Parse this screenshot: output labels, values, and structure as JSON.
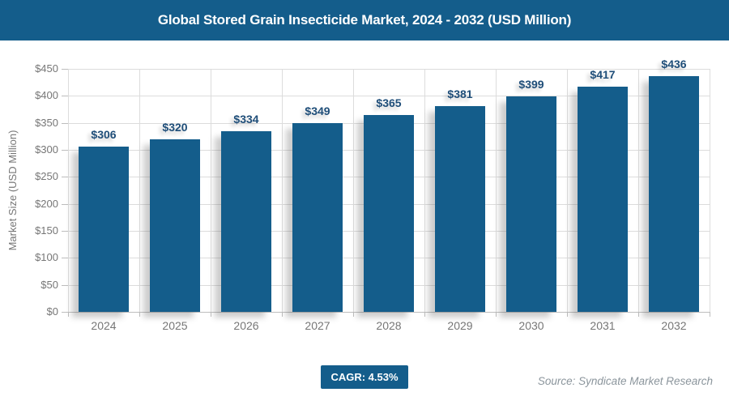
{
  "header": {
    "title": "Global Stored Grain Insecticide Market, 2024 - 2032 (USD Million)"
  },
  "chart_data": {
    "type": "bar",
    "title": "Global Stored Grain Insecticide Market, 2024 - 2032 (USD Million)",
    "categories": [
      "2024",
      "2025",
      "2026",
      "2027",
      "2028",
      "2029",
      "2030",
      "2031",
      "2032"
    ],
    "values": [
      306,
      320,
      334,
      349,
      365,
      381,
      399,
      417,
      436
    ],
    "value_labels": [
      "$306",
      "$320",
      "$334",
      "$349",
      "$365",
      "$381",
      "$399",
      "$417",
      "$436"
    ],
    "xlabel": "",
    "ylabel": "Market Size (USD Million)",
    "ylim": [
      0,
      450
    ],
    "ytick_step": 50,
    "ytick_labels": [
      "$450",
      "$400",
      "$350",
      "$300",
      "$250",
      "$200",
      "$150",
      "$100",
      "$50",
      "$0"
    ],
    "grid": "on",
    "legend": "none"
  },
  "theme": {
    "primary": "#145d8b",
    "value_label": "#1f4e79",
    "grid": "#dcdcdc",
    "axis": "#bdbdbd",
    "tick_text": "#767676",
    "source_text": "#8b959c"
  },
  "footer": {
    "cagr_label": "CAGR: 4.53%",
    "source": "Source: Syndicate Market Research"
  }
}
